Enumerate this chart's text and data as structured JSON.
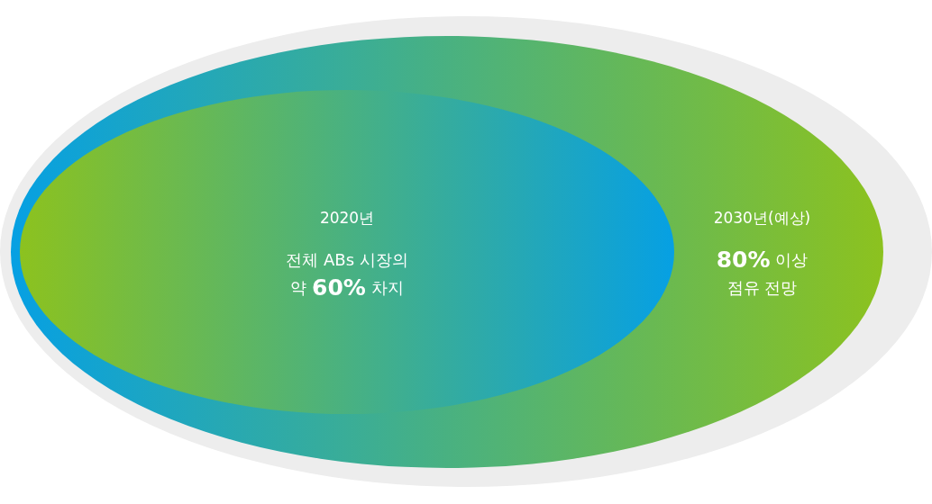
{
  "chart_data": {
    "type": "other",
    "categories": [
      "2020년",
      "2030년(예상)"
    ],
    "values": [
      60,
      80
    ],
    "value_labels": [
      "전체 ABs 시장의\n약 60% 차지",
      "80% 이상\n점유 전망"
    ],
    "colors": [
      "#8cc21f",
      "#06a0e3"
    ]
  }
}
